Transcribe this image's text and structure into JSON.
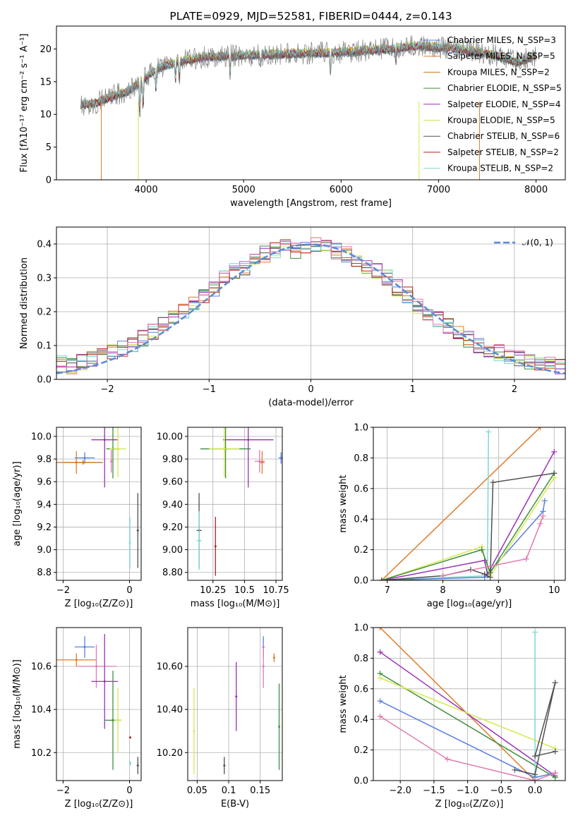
{
  "colors": {
    "chabrier_miles": "#5b7fde",
    "salpeter_miles": "#e07b2a",
    "kroupa_miles": "#c9781e",
    "chabrier_elodie": "#3f8f3f",
    "salpeter_elodie": "#9b30b8",
    "kroupa_elodie": "#d4e84e",
    "chabrier_stelib": "#505050",
    "salpeter_stelib": "#b22222",
    "kroupa_stelib": "#7fd6d6",
    "pink": "#e07ab0",
    "normal": "#5b8bd6",
    "data": "#808080"
  },
  "chart_data": [
    {
      "type": "line",
      "title": "PLATE=0929, MJD=52581, FIBERID=0444, z=0.143",
      "xlabel": "wavelength [Angstrom, rest frame]",
      "ylabel": "Flux [fλ10⁻¹⁷ erg cm⁻² s⁻¹ A⁻¹]",
      "xlim": [
        3080,
        8300
      ],
      "ylim": [
        0,
        23.5
      ],
      "xticks": [
        4000,
        5000,
        6000,
        7000,
        8000
      ],
      "yticks": [
        0,
        5,
        10,
        15,
        20
      ],
      "grid": false,
      "legend_position": "right",
      "legend": [
        "Chabrier MILES, N_SSP=3",
        "Salpeter MILES, N_SSP=5",
        "Kroupa MILES, N_SSP=2",
        "Chabrier ELODIE, N_SSP=5",
        "Salpeter ELODIE, N_SSP=4",
        "Kroupa ELODIE, N_SSP=5",
        "Chabrier STELIB, N_SSP=6",
        "Salpeter STELIB, N_SSP=2",
        "Kroupa STELIB, N_SSP=2"
      ],
      "spectrum_envelope": {
        "x": [
          3330,
          3500,
          3600,
          3800,
          3950,
          4100,
          4300,
          4600,
          5000,
          5500,
          6000,
          6500,
          6800,
          7200,
          7600,
          7800,
          8000
        ],
        "y": [
          11.5,
          11.8,
          12.5,
          13.5,
          15.0,
          17.0,
          18.0,
          18.8,
          19.0,
          19.3,
          19.5,
          20.0,
          20.5,
          20.0,
          19.0,
          18.0,
          19.0
        ]
      }
    },
    {
      "type": "line",
      "xlabel": "(data-model)/error",
      "ylabel": "Normed distribution",
      "xlim": [
        -2.5,
        2.5
      ],
      "ylim": [
        0,
        0.45
      ],
      "xticks": [
        -2,
        -1,
        0,
        1,
        2
      ],
      "yticks": [
        0.0,
        0.1,
        0.2,
        0.3,
        0.4
      ],
      "grid": true,
      "legend_position": "top-right",
      "legend": [
        "𝒩(0, 1)"
      ],
      "histogram_mean": {
        "x": [
          -2.45,
          -2.35,
          -2.25,
          -2.15,
          -2.05,
          -1.95,
          -1.85,
          -1.75,
          -1.65,
          -1.55,
          -1.45,
          -1.35,
          -1.25,
          -1.15,
          -1.05,
          -0.95,
          -0.85,
          -0.75,
          -0.65,
          -0.55,
          -0.45,
          -0.35,
          -0.25,
          -0.15,
          -0.05,
          0.05,
          0.15,
          0.25,
          0.35,
          0.45,
          0.55,
          0.65,
          0.75,
          0.85,
          0.95,
          1.05,
          1.15,
          1.25,
          1.35,
          1.45,
          1.55,
          1.65,
          1.75,
          1.85,
          1.95,
          2.05,
          2.15,
          2.25,
          2.35,
          2.45
        ],
        "y": [
          0.045,
          0.04,
          0.05,
          0.06,
          0.07,
          0.08,
          0.09,
          0.1,
          0.12,
          0.14,
          0.16,
          0.18,
          0.2,
          0.22,
          0.25,
          0.27,
          0.3,
          0.32,
          0.33,
          0.36,
          0.37,
          0.38,
          0.39,
          0.38,
          0.39,
          0.4,
          0.39,
          0.38,
          0.37,
          0.35,
          0.33,
          0.32,
          0.3,
          0.27,
          0.25,
          0.22,
          0.2,
          0.18,
          0.16,
          0.14,
          0.12,
          0.1,
          0.09,
          0.08,
          0.07,
          0.06,
          0.055,
          0.05,
          0.045,
          0.04
        ]
      }
    },
    {
      "type": "scatter",
      "xlabel": "Z [log₁₀(Z/Z⊙)]",
      "ylabel": "age  [log₁₀(age/yr)]",
      "xlim": [
        -2.2,
        0.35
      ],
      "ylim": [
        8.73,
        10.08
      ],
      "xticks": [
        -2,
        0
      ],
      "yticks": [
        8.8,
        9.0,
        9.2,
        9.4,
        9.6,
        9.8,
        10.0
      ],
      "grid": true,
      "points": [
        {
          "x": -1.35,
          "y": 9.81,
          "xerr": 0.3,
          "yerr": 0.05,
          "c": "chabrier_miles"
        },
        {
          "x": -1.6,
          "y": 9.77,
          "xerr": 0.6,
          "yerr": 0.1,
          "c": "salpeter_miles"
        },
        {
          "x": -1.4,
          "y": 9.77,
          "xerr": 0.6,
          "yerr": 0.02,
          "c": "kroupa_miles"
        },
        {
          "x": -0.5,
          "y": 9.89,
          "xerr": 0.2,
          "yerr": 0.26,
          "c": "chabrier_elodie"
        },
        {
          "x": -0.75,
          "y": 9.97,
          "xerr": 0.4,
          "yerr": 0.42,
          "c": "salpeter_elodie"
        },
        {
          "x": -0.35,
          "y": 9.89,
          "xerr": 0.25,
          "yerr": 0.25,
          "c": "kroupa_elodie"
        },
        {
          "x": 0.25,
          "y": 9.17,
          "xerr": 0.03,
          "yerr": 0.33,
          "c": "chabrier_stelib"
        },
        {
          "x": 0.01,
          "y": 9.06,
          "xerr": 0.03,
          "yerr": 0.23,
          "c": "kroupa_stelib"
        },
        {
          "x": -0.55,
          "y": 9.78,
          "xerr": 0.03,
          "yerr": 0.1,
          "c": "pink"
        }
      ]
    },
    {
      "type": "scatter",
      "xlabel": "mass [log₁₀(M/M⊙)]",
      "ylabel": "",
      "xlim": [
        10.05,
        10.8
      ],
      "ylim": [
        8.73,
        10.08
      ],
      "xticks": [
        10.25,
        10.5,
        10.75
      ],
      "yticks": [
        8.8,
        9.0,
        9.2,
        9.4,
        9.6,
        9.8,
        10.0
      ],
      "grid": true,
      "points": [
        {
          "x": 10.79,
          "y": 9.81,
          "xerr": 0.02,
          "yerr": 0.05,
          "c": "chabrier_miles"
        },
        {
          "x": 10.64,
          "y": 9.77,
          "xerr": 0.02,
          "yerr": 0.1,
          "c": "salpeter_miles"
        },
        {
          "x": 10.35,
          "y": 9.89,
          "xerr": 0.2,
          "yerr": 0.26,
          "c": "chabrier_elodie"
        },
        {
          "x": 10.53,
          "y": 9.97,
          "xerr": 0.2,
          "yerr": 0.42,
          "c": "salpeter_elodie"
        },
        {
          "x": 10.34,
          "y": 9.89,
          "xerr": 0.12,
          "yerr": 0.25,
          "c": "kroupa_elodie"
        },
        {
          "x": 10.14,
          "y": 9.17,
          "xerr": 0.02,
          "yerr": 0.33,
          "c": "chabrier_stelib"
        },
        {
          "x": 10.27,
          "y": 9.03,
          "xerr": 0.005,
          "yerr": 0.26,
          "c": "salpeter_stelib"
        },
        {
          "x": 10.14,
          "y": 9.08,
          "xerr": 0.02,
          "yerr": 0.26,
          "c": "kroupa_stelib"
        },
        {
          "x": 10.62,
          "y": 9.78,
          "xerr": 0.04,
          "yerr": 0.1,
          "c": "pink"
        }
      ]
    },
    {
      "type": "line",
      "xlabel": "age  [log₁₀(age/yr)]",
      "ylabel": "mass weight",
      "xlim": [
        6.75,
        10.2
      ],
      "ylim": [
        0,
        1.0
      ],
      "xticks": [
        7,
        8,
        9,
        10
      ],
      "yticks": [
        0.0,
        0.2,
        0.4,
        0.6,
        0.8,
        1.0
      ],
      "grid": true,
      "series": [
        {
          "c": "salpeter_miles",
          "x": [
            6.9,
            9.75
          ],
          "y": [
            0.0,
            1.0
          ]
        },
        {
          "c": "kroupa_stelib",
          "x": [
            6.9,
            8.8,
            8.82
          ],
          "y": [
            0.0,
            0.03,
            0.97
          ]
        },
        {
          "c": "chabrier_miles",
          "x": [
            6.9,
            8.75,
            9.8,
            9.83
          ],
          "y": [
            0.0,
            0.02,
            0.45,
            0.52
          ]
        },
        {
          "c": "salpeter_elodie",
          "x": [
            6.9,
            8.75,
            8.8,
            10.0
          ],
          "y": [
            0.0,
            0.13,
            0.04,
            0.84
          ]
        },
        {
          "c": "kroupa_elodie",
          "x": [
            6.9,
            8.7,
            8.85,
            10.0
          ],
          "y": [
            0.0,
            0.22,
            0.03,
            0.67
          ]
        },
        {
          "c": "chabrier_elodie",
          "x": [
            6.9,
            8.7,
            8.85,
            10.0
          ],
          "y": [
            0.0,
            0.2,
            0.05,
            0.7
          ]
        },
        {
          "c": "chabrier_stelib",
          "x": [
            6.9,
            8.0,
            8.5,
            8.75,
            8.85,
            8.9,
            10.0
          ],
          "y": [
            0.0,
            0.03,
            0.07,
            0.04,
            0.02,
            0.64,
            0.7
          ]
        },
        {
          "c": "pink",
          "x": [
            8.0,
            9.5,
            9.75,
            9.8
          ],
          "y": [
            0.03,
            0.14,
            0.37,
            0.42
          ]
        }
      ]
    },
    {
      "type": "scatter",
      "xlabel": "Z [log₁₀(Z/Z⊙)]",
      "ylabel": "mass [log₁₀(M/M⊙)]",
      "xlim": [
        -2.2,
        0.35
      ],
      "ylim": [
        10.07,
        10.78
      ],
      "xticks": [
        -2,
        0
      ],
      "yticks": [
        10.2,
        10.4,
        10.6
      ],
      "grid": true,
      "points": [
        {
          "x": -1.35,
          "y": 10.69,
          "xerr": 0.3,
          "yerr": 0.05,
          "c": "chabrier_miles"
        },
        {
          "x": -1.6,
          "y": 10.63,
          "xerr": 0.6,
          "yerr": 0.03,
          "c": "salpeter_miles"
        },
        {
          "x": -1.0,
          "y": 10.6,
          "xerr": 0.6,
          "yerr": 0.1,
          "c": "pink"
        },
        {
          "x": -0.75,
          "y": 10.53,
          "xerr": 0.4,
          "yerr": 0.22,
          "c": "salpeter_elodie"
        },
        {
          "x": -0.5,
          "y": 10.35,
          "xerr": 0.25,
          "yerr": 0.23,
          "c": "chabrier_elodie"
        },
        {
          "x": -0.35,
          "y": 10.35,
          "xerr": 0.1,
          "yerr": 0.15,
          "c": "kroupa_elodie"
        },
        {
          "x": 0.25,
          "y": 10.14,
          "xerr": 0.03,
          "yerr": 0.04,
          "c": "chabrier_stelib"
        },
        {
          "x": 0.02,
          "y": 10.27,
          "xerr": 0.03,
          "yerr": 0.005,
          "c": "salpeter_stelib"
        },
        {
          "x": 0.02,
          "y": 10.15,
          "xerr": 0.03,
          "yerr": 0.01,
          "c": "kroupa_stelib"
        }
      ]
    },
    {
      "type": "scatter",
      "xlabel": "E(B-V)",
      "ylabel": "",
      "xlim": [
        0.035,
        0.185
      ],
      "ylim": [
        10.07,
        10.78
      ],
      "xticks": [
        0.05,
        0.1,
        0.15
      ],
      "yticks": [
        10.2,
        10.4,
        10.6
      ],
      "grid": true,
      "points": [
        {
          "x": 0.155,
          "y": 10.69,
          "yerr": 0.05,
          "c": "chabrier_miles"
        },
        {
          "x": 0.172,
          "y": 10.64,
          "yerr": 0.02,
          "c": "salpeter_miles"
        },
        {
          "x": 0.155,
          "y": 10.6,
          "yerr": 0.1,
          "c": "pink"
        },
        {
          "x": 0.112,
          "y": 10.46,
          "yerr": 0.16,
          "c": "salpeter_elodie"
        },
        {
          "x": 0.18,
          "y": 10.32,
          "yerr": 0.2,
          "c": "chabrier_elodie"
        },
        {
          "x": 0.045,
          "y": 10.3,
          "yerr": 0.2,
          "c": "kroupa_elodie"
        },
        {
          "x": 0.093,
          "y": 10.14,
          "yerr": 0.04,
          "c": "chabrier_stelib"
        }
      ]
    },
    {
      "type": "line",
      "xlabel": "Z [log₁₀(Z/Z⊙)]",
      "ylabel": "mass weight",
      "xlim": [
        -2.4,
        0.45
      ],
      "ylim": [
        0,
        1.0
      ],
      "xticks": [
        -2.0,
        -1.5,
        -1.0,
        -0.5,
        0.0
      ],
      "yticks": [
        0.0,
        0.2,
        0.4,
        0.6,
        0.8,
        1.0
      ],
      "grid": true,
      "series": [
        {
          "c": "salpeter_miles",
          "x": [
            -2.3,
            0.0
          ],
          "y": [
            1.0,
            0.0
          ]
        },
        {
          "c": "salpeter_elodie",
          "x": [
            -2.3,
            0.3
          ],
          "y": [
            0.84,
            0.03
          ]
        },
        {
          "c": "chabrier_elodie",
          "x": [
            -2.3,
            0.3
          ],
          "y": [
            0.7,
            0.02
          ]
        },
        {
          "c": "kroupa_elodie",
          "x": [
            -2.3,
            0.3
          ],
          "y": [
            0.67,
            0.21
          ]
        },
        {
          "c": "chabrier_miles",
          "x": [
            -2.3,
            0.0,
            0.3
          ],
          "y": [
            0.52,
            0.02,
            0.05
          ]
        },
        {
          "c": "pink",
          "x": [
            -2.3,
            -1.3,
            0.0,
            0.3
          ],
          "y": [
            0.42,
            0.14,
            0.0,
            0.05
          ]
        },
        {
          "c": "kroupa_stelib",
          "x": [
            0.0,
            0.0
          ],
          "y": [
            0.97,
            0.03
          ]
        },
        {
          "c": "chabrier_stelib",
          "x": [
            -0.3,
            0.0,
            0.3,
            0.0,
            0.3
          ],
          "y": [
            0.07,
            0.04,
            0.64,
            0.16,
            0.19
          ]
        }
      ]
    }
  ]
}
